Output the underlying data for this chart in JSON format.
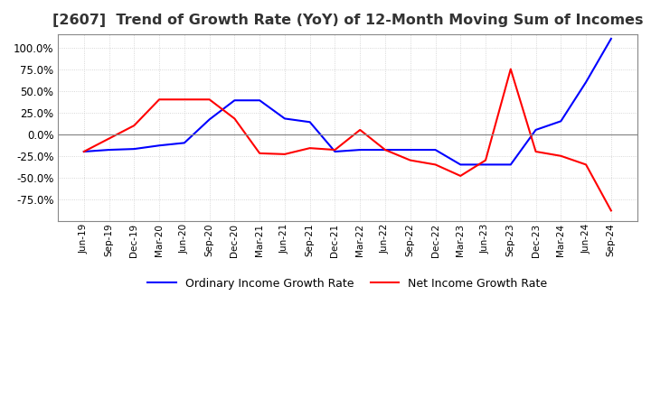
{
  "title": "[2607]  Trend of Growth Rate (YoY) of 12-Month Moving Sum of Incomes",
  "title_fontsize": 11.5,
  "ylim": [
    -100,
    115
  ],
  "yticks": [
    -75,
    -50,
    -25,
    0,
    25,
    50,
    75,
    100
  ],
  "background_color": "#ffffff",
  "grid_color": "#cccccc",
  "legend_labels": [
    "Ordinary Income Growth Rate",
    "Net Income Growth Rate"
  ],
  "legend_colors": [
    "#0000ff",
    "#ff0000"
  ],
  "x_labels": [
    "Jun-19",
    "Sep-19",
    "Dec-19",
    "Mar-20",
    "Jun-20",
    "Sep-20",
    "Dec-20",
    "Mar-21",
    "Jun-21",
    "Sep-21",
    "Dec-21",
    "Mar-22",
    "Jun-22",
    "Sep-22",
    "Dec-22",
    "Mar-23",
    "Jun-23",
    "Sep-23",
    "Dec-23",
    "Mar-24",
    "Jun-24",
    "Sep-24"
  ],
  "ordinary_income": [
    -20,
    -18,
    -17,
    -13,
    -10,
    17,
    39,
    39,
    18,
    14,
    -20,
    -18,
    -18,
    -18,
    -18,
    -35,
    -35,
    -35,
    5,
    15,
    60,
    110
  ],
  "net_income": [
    -20,
    -5,
    10,
    40,
    40,
    40,
    18,
    -22,
    -23,
    -16,
    -18,
    5,
    -18,
    -30,
    -35,
    -48,
    -30,
    75,
    -20,
    -25,
    -35,
    -88
  ]
}
